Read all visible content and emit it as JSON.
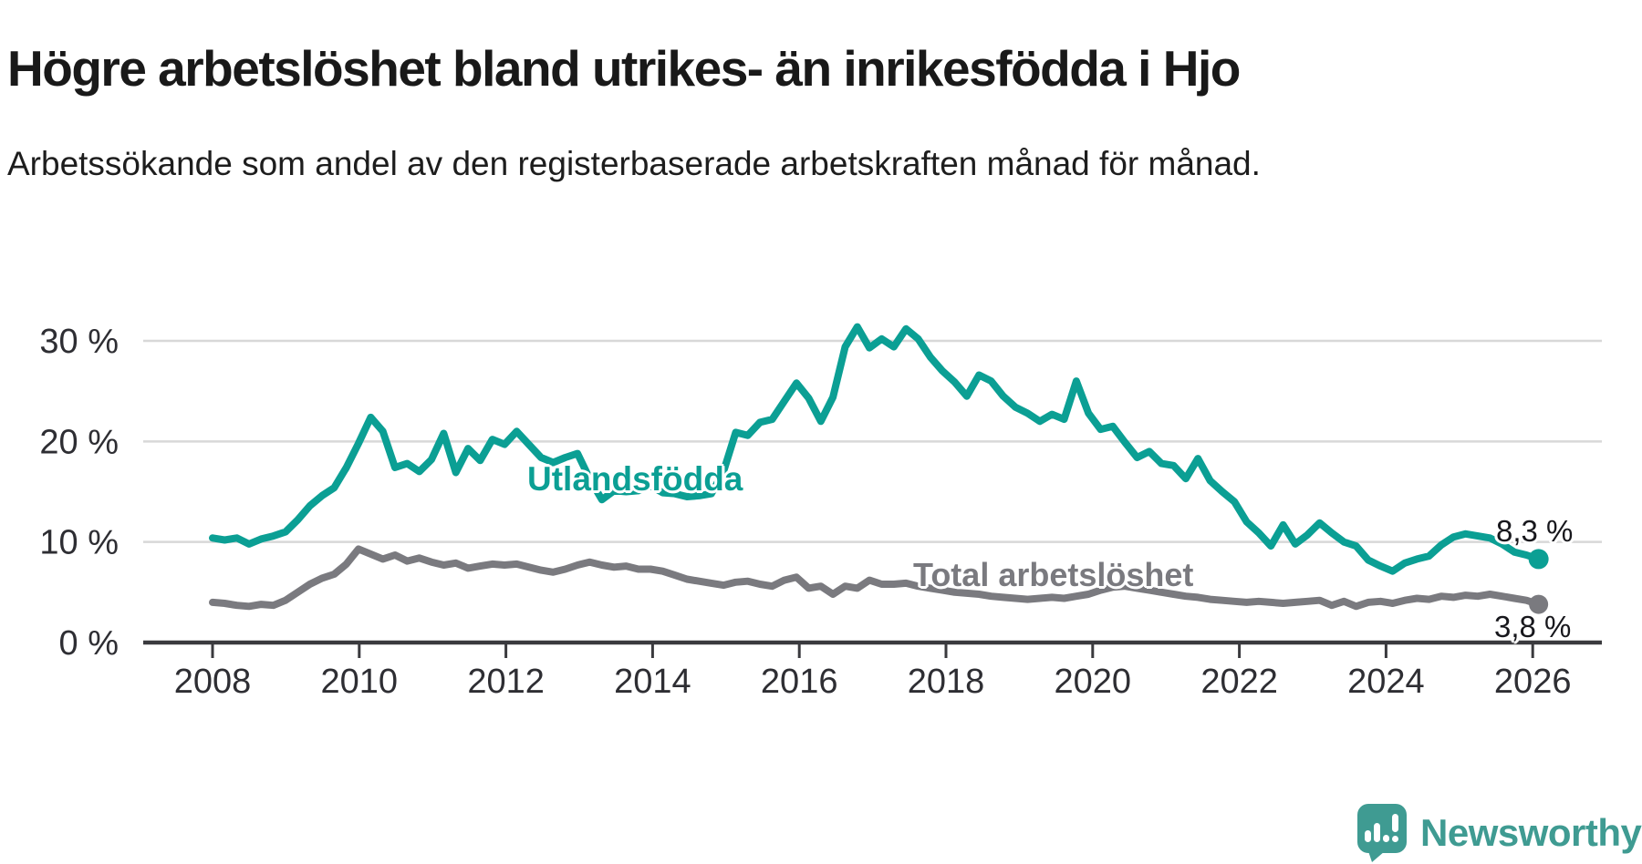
{
  "title": "Högre arbetslöshet bland utrikes- än inrikesfödda i Hjo",
  "subtitle": "Arbetssökande som andel av den registerbaserade arbetskraften månad för månad.",
  "logo": {
    "text": "Newsworthy",
    "color": "#3f9b92"
  },
  "colors": {
    "foreign_born_line": "#0b9f94",
    "total_line": "#7a7a7f",
    "gridline": "#d8d8d8",
    "axis": "#3a3a3e",
    "axis_text": "#2e2e33",
    "value_label_text": "#17171c"
  },
  "chart_data": {
    "type": "line",
    "title": "Högre arbetslöshet bland utrikes- än inrikesfödda i Hjo",
    "xlabel": "",
    "ylabel": "",
    "unit": "%",
    "decimal_separator": ",",
    "grid": "horizontal",
    "legend_position": "inline-labels",
    "xlim": [
      2007.5,
      2026.6
    ],
    "ylim": [
      0,
      33
    ],
    "x_start": 2008.0,
    "x_end": 2026.08,
    "x_ticks": [
      {
        "year": 2008,
        "label": "2008"
      },
      {
        "year": 2010,
        "label": "2010"
      },
      {
        "year": 2012,
        "label": "2012"
      },
      {
        "year": 2014,
        "label": "2014"
      },
      {
        "year": 2016,
        "label": "2016"
      },
      {
        "year": 2018,
        "label": "2018"
      },
      {
        "year": 2020,
        "label": "2020"
      },
      {
        "year": 2022,
        "label": "2022"
      },
      {
        "year": 2024,
        "label": "2024"
      },
      {
        "year": 2026,
        "label": "2026"
      }
    ],
    "y_ticks": [
      {
        "value": 0,
        "label": "0 %"
      },
      {
        "value": 10,
        "label": "10 %"
      },
      {
        "value": 20,
        "label": "20 %"
      },
      {
        "value": 30,
        "label": "30 %"
      }
    ],
    "series": [
      {
        "name": "Utlandsfödda",
        "color": "#0b9f94",
        "end_label": "8,3 %",
        "end_value": 8.3,
        "values": [
          10.4,
          10.2,
          10.4,
          9.8,
          10.3,
          10.6,
          11.0,
          12.2,
          13.6,
          14.6,
          15.4,
          17.4,
          19.8,
          22.4,
          21.0,
          17.4,
          17.8,
          17.0,
          18.2,
          20.8,
          16.9,
          19.3,
          18.1,
          20.2,
          19.7,
          21.0,
          19.7,
          18.4,
          17.9,
          18.4,
          18.8,
          16.3,
          14.2,
          15.1,
          15.0,
          15.1,
          15.6,
          14.9,
          14.8,
          14.5,
          14.6,
          14.8,
          17.0,
          20.9,
          20.6,
          21.9,
          22.2,
          24.0,
          25.8,
          24.3,
          22.0,
          24.4,
          29.4,
          31.4,
          29.3,
          30.2,
          29.4,
          31.2,
          30.2,
          28.4,
          27.0,
          25.9,
          24.5,
          26.6,
          26.0,
          24.5,
          23.4,
          22.8,
          22.0,
          22.7,
          22.2,
          26.0,
          22.8,
          21.2,
          21.5,
          19.9,
          18.4,
          19.0,
          17.8,
          17.6,
          16.3,
          18.3,
          16.1,
          15.0,
          14.0,
          12.0,
          10.9,
          9.6,
          11.7,
          9.8,
          10.7,
          11.9,
          10.9,
          10.0,
          9.6,
          8.2,
          7.6,
          7.1,
          7.9,
          8.3,
          8.6,
          9.7,
          10.5,
          10.8,
          10.6,
          10.4,
          9.8,
          9.0,
          8.7,
          8.3
        ]
      },
      {
        "name": "Total arbetslöshet",
        "color": "#7a7a7f",
        "end_label": "3,8 %",
        "end_value": 3.8,
        "values": [
          4.0,
          3.9,
          3.7,
          3.6,
          3.8,
          3.7,
          4.2,
          5.0,
          5.8,
          6.4,
          6.8,
          7.8,
          9.3,
          8.8,
          8.3,
          8.7,
          8.1,
          8.4,
          8.0,
          7.7,
          7.9,
          7.4,
          7.6,
          7.8,
          7.7,
          7.8,
          7.5,
          7.2,
          7.0,
          7.3,
          7.7,
          8.0,
          7.7,
          7.5,
          7.6,
          7.3,
          7.3,
          7.1,
          6.7,
          6.3,
          6.1,
          5.9,
          5.7,
          6.0,
          6.1,
          5.8,
          5.6,
          6.2,
          6.5,
          5.4,
          5.6,
          4.8,
          5.6,
          5.4,
          6.2,
          5.8,
          5.8,
          5.9,
          5.6,
          5.4,
          5.2,
          5.0,
          4.9,
          4.8,
          4.6,
          4.5,
          4.4,
          4.3,
          4.4,
          4.5,
          4.4,
          4.6,
          4.8,
          5.2,
          5.5,
          5.6,
          5.4,
          5.2,
          5.0,
          4.8,
          4.6,
          4.5,
          4.3,
          4.2,
          4.1,
          4.0,
          4.1,
          4.0,
          3.9,
          4.0,
          4.1,
          4.2,
          3.7,
          4.1,
          3.6,
          4.0,
          4.1,
          3.9,
          4.2,
          4.4,
          4.3,
          4.6,
          4.5,
          4.7,
          4.6,
          4.8,
          4.6,
          4.4,
          4.2,
          3.8
        ]
      }
    ]
  }
}
